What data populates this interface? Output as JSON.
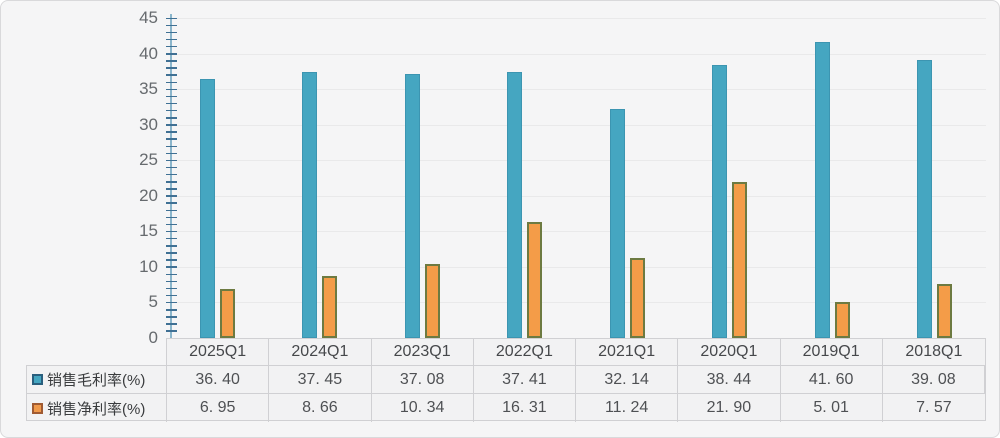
{
  "colors": {
    "gross_bar": "#45a6c1",
    "gross_bar_border": "#3c95b1",
    "net_bar": "#f49c48",
    "net_bar_border": "#6d7a41",
    "legend_gross_swatch_border": "#2a5f7e",
    "legend_net_swatch_border": "#a05a32",
    "axis_line": "#8ab5cb",
    "tick": "#3f7094",
    "gridline": "#e9e9ea",
    "card_background": "#f5f5f6",
    "table_border": "#d0d0d3"
  },
  "y_axis": {
    "labels": [
      "0",
      "5",
      "10",
      "15",
      "20",
      "25",
      "30",
      "35",
      "40",
      "45"
    ]
  },
  "chart_data": {
    "type": "bar",
    "categories": [
      "2025Q1",
      "2024Q1",
      "2023Q1",
      "2022Q1",
      "2021Q1",
      "2020Q1",
      "2019Q1",
      "2018Q1"
    ],
    "series": [
      {
        "name": "销售毛利率(%)",
        "values": [
          36.4,
          37.45,
          37.08,
          37.41,
          32.14,
          38.44,
          41.6,
          39.08
        ],
        "color": "#45a6c1"
      },
      {
        "name": "销售净利率(%)",
        "values": [
          6.95,
          8.66,
          10.34,
          16.31,
          11.24,
          21.9,
          5.01,
          7.57
        ],
        "color": "#f49c48"
      }
    ],
    "title": "",
    "xlabel": "",
    "ylabel": "",
    "ylim": [
      0,
      45
    ],
    "ytick_step": 5,
    "minor_tick_step": 1,
    "grid": true,
    "legend_position": "table-left-column"
  },
  "table": {
    "header": [
      "2025Q1",
      "2024Q1",
      "2023Q1",
      "2022Q1",
      "2021Q1",
      "2020Q1",
      "2019Q1",
      "2018Q1"
    ],
    "rows": [
      {
        "label": "销售毛利率(%)",
        "values": [
          "36. 40",
          "37. 45",
          "37. 08",
          "37. 41",
          "32. 14",
          "38. 44",
          "41. 60",
          "39. 08"
        ]
      },
      {
        "label": "销售净利率(%)",
        "values": [
          "6. 95",
          "8. 66",
          "10. 34",
          "16. 31",
          "11. 24",
          "21. 90",
          "5. 01",
          "7. 57"
        ]
      }
    ]
  }
}
